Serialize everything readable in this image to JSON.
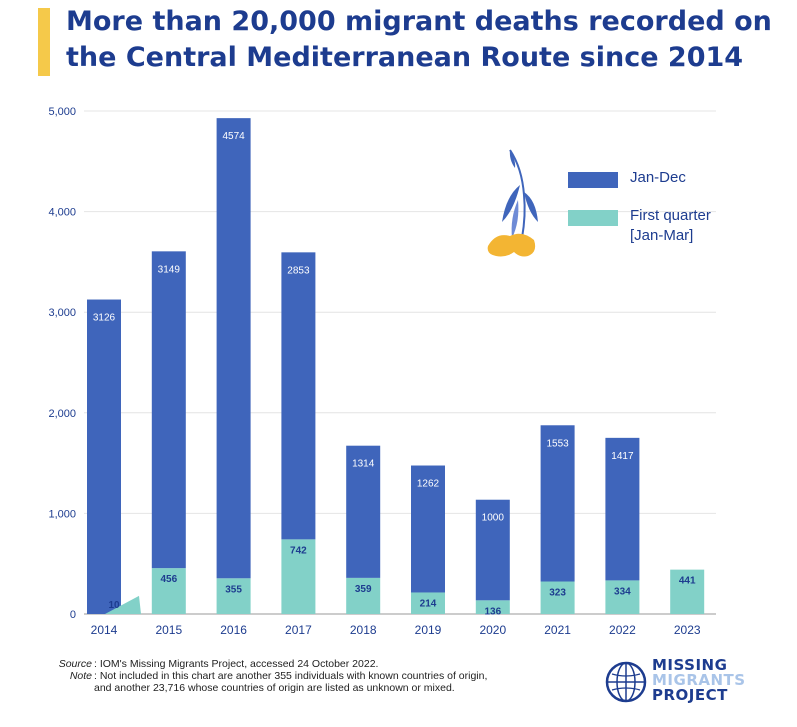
{
  "title": "More than 20,000 migrant deaths recorded on the Central Mediterranean Route since 2014",
  "colors": {
    "jan_dec": "#3f65bb",
    "first_quarter": "#82d1c8",
    "accent": "#f5c94a",
    "text": "#1d3c8f"
  },
  "legend": {
    "jan_dec": "Jan-Dec",
    "first_quarter": "First quarter [Jan-Mar]"
  },
  "chart_data": {
    "type": "bar",
    "title": "More than 20,000 migrant deaths recorded on the Central Mediterranean Route since 2014",
    "categories": [
      "2014",
      "2015",
      "2016",
      "2017",
      "2018",
      "2019",
      "2020",
      "2021",
      "2022",
      "2023"
    ],
    "series": [
      {
        "name": "Jan-Dec",
        "values": [
          3126,
          3149,
          4574,
          2853,
          1314,
          1262,
          1000,
          1553,
          1417,
          null
        ],
        "labels": [
          "3126",
          "3149",
          "4574",
          "2853",
          "1314",
          "1262",
          "1000",
          "1553",
          "1417",
          ""
        ]
      },
      {
        "name": "First quarter [Jan-Mar]",
        "values": [
          10,
          456,
          355,
          742,
          359,
          214,
          136,
          323,
          334,
          441
        ],
        "labels": [
          "10",
          "456",
          "355",
          "742",
          "359",
          "214",
          "136",
          "323",
          "334",
          "441"
        ]
      }
    ],
    "yticks": [
      0,
      1000,
      2000,
      3000,
      4000,
      5000
    ],
    "ytick_labels": [
      "0",
      "1,000",
      "2,000",
      "3,000",
      "4,000",
      "5,000"
    ],
    "ylim": [
      0,
      5000
    ],
    "stacked": true,
    "grid": true,
    "legend_position": "top-right"
  },
  "footnote": {
    "source_key": "Source",
    "source_text": ": IOM's Missing Migrants Project, accessed 24 October 2022.",
    "note_key": "Note",
    "note_text": ": Not included in this chart are another 355 individuals with known countries of origin,",
    "note_text_2": "and another 23,716 whose countries of origin are listed as unknown or mixed."
  },
  "logo": {
    "line1": "MISSING",
    "line2": "MIGRANTS",
    "line3": "PROJECT"
  }
}
